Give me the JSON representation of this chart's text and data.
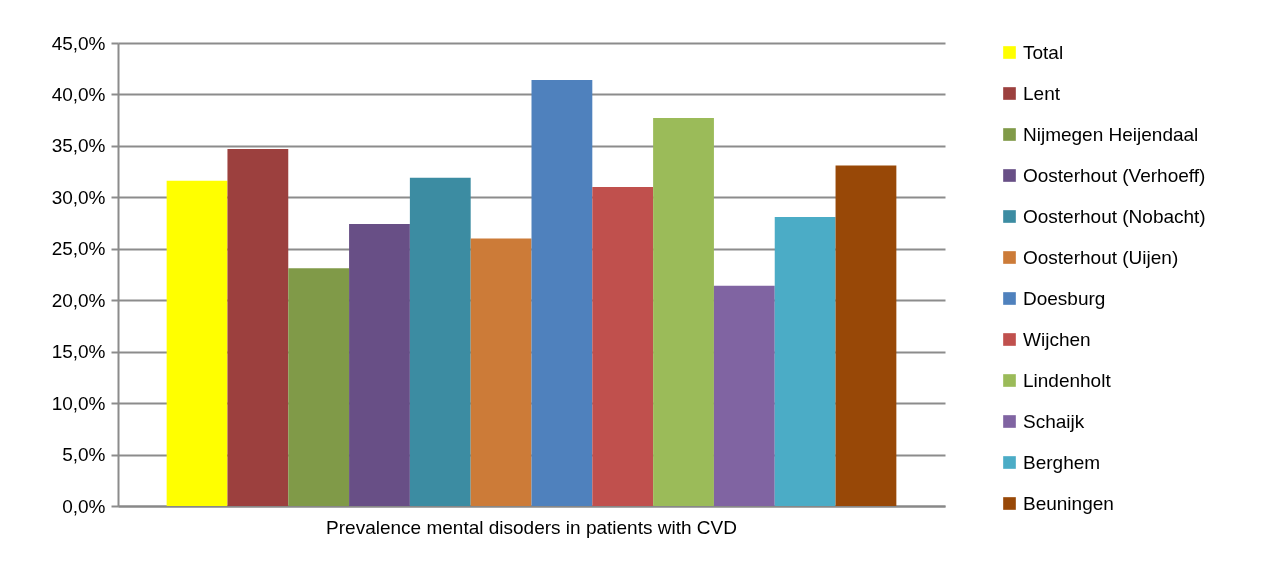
{
  "chart_data": {
    "type": "bar",
    "categories": [
      "Prevalence mental disoders in patients with CVD"
    ],
    "series": [
      {
        "name": "Total",
        "color": "#ffff00",
        "values": [
          31.6
        ]
      },
      {
        "name": "Lent",
        "color": "#9c403e",
        "values": [
          34.7
        ]
      },
      {
        "name": "Nijmegen Heijendaal",
        "color": "#809a48",
        "values": [
          23.1
        ]
      },
      {
        "name": "Oosterhout (Verhoeff)",
        "color": "#684f86",
        "values": [
          27.4
        ]
      },
      {
        "name": "Oosterhout (Nobacht)",
        "color": "#3c8ca2",
        "values": [
          31.9
        ]
      },
      {
        "name": "Oosterhout (Uijen)",
        "color": "#cc7b38",
        "values": [
          26.0
        ]
      },
      {
        "name": "Doesburg",
        "color": "#4f81bd",
        "values": [
          41.4
        ]
      },
      {
        "name": "Wijchen",
        "color": "#c0504d",
        "values": [
          31.0
        ]
      },
      {
        "name": "Lindenholt",
        "color": "#9bbb59",
        "values": [
          37.7
        ]
      },
      {
        "name": "Schaijk",
        "color": "#8064a2",
        "values": [
          21.4
        ]
      },
      {
        "name": "Berghem",
        "color": "#4bacc6",
        "values": [
          28.1
        ]
      },
      {
        "name": "Beuningen",
        "color": "#984807",
        "values": [
          33.1
        ]
      }
    ],
    "ylim": [
      0,
      45
    ],
    "yticks": [
      {
        "value": 0,
        "label": "0,0%"
      },
      {
        "value": 5,
        "label": "5,0%"
      },
      {
        "value": 10,
        "label": "10,0%"
      },
      {
        "value": 15,
        "label": "15,0%"
      },
      {
        "value": 20,
        "label": "20,0%"
      },
      {
        "value": 25,
        "label": "25,0%"
      },
      {
        "value": 30,
        "label": "30,0%"
      },
      {
        "value": 35,
        "label": "35,0%"
      },
      {
        "value": 40,
        "label": "40,0%"
      },
      {
        "value": 45,
        "label": "45,0%"
      }
    ],
    "grid": "y",
    "legend": "right"
  }
}
